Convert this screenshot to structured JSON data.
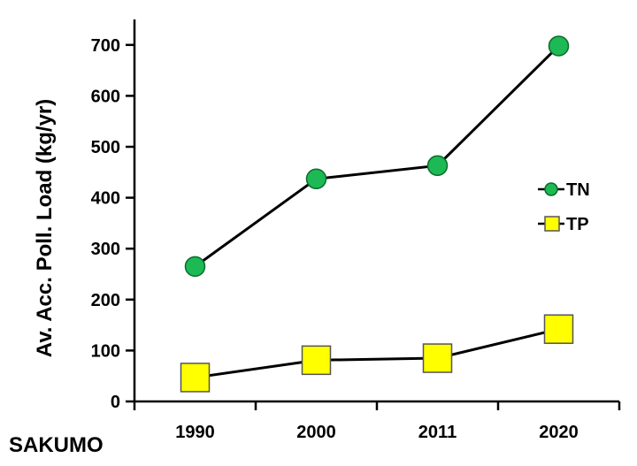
{
  "chart_data": {
    "type": "line",
    "categories": [
      "1990",
      "2000",
      "2011",
      "2020"
    ],
    "ylabel": "Av. Acc. Poll. Load (kg/yr)",
    "ylim": [
      0,
      750
    ],
    "yticks": [
      0,
      100,
      200,
      300,
      400,
      500,
      600,
      700
    ],
    "grid": false,
    "legend_position": "right",
    "series": [
      {
        "name": "TN",
        "values": [
          265,
          437,
          463,
          698
        ],
        "marker": "circle",
        "color": "#1db954",
        "stroke": "#0b6b2e",
        "line_color": "#000000"
      },
      {
        "name": "TP",
        "values": [
          47,
          81,
          85,
          142
        ],
        "marker": "square",
        "color": "#ffff00",
        "stroke": "#555555",
        "line_color": "#000000"
      }
    ]
  },
  "site_label": "SAKUMO"
}
